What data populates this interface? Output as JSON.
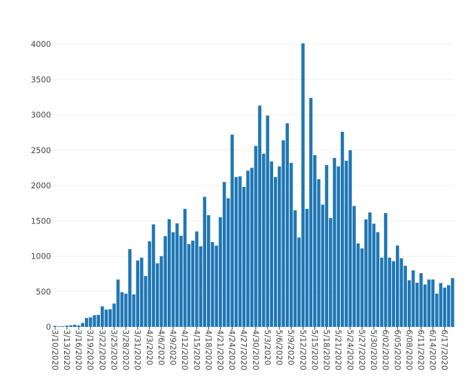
{
  "chart_data": {
    "type": "bar",
    "title": "",
    "xlabel": "",
    "ylabel": "",
    "ylim": [
      0,
      4100
    ],
    "yticks": [
      0,
      500,
      1000,
      1500,
      2000,
      2500,
      3000,
      3500,
      4000
    ],
    "grid": true,
    "legend": "none",
    "bar_color": "#1f77b4",
    "grid_color": "#eeeeee",
    "start_date": "2020-03-10",
    "x_tick_labels": [
      "3/10/2020",
      "3/13/2020",
      "3/16/2020",
      "3/19/2020",
      "3/22/2020",
      "3/25/2020",
      "3/28/2020",
      "3/31/2020",
      "4/3/2020",
      "4/6/2020",
      "4/9/2020",
      "4/12/2020",
      "4/15/2020",
      "4/18/2020",
      "4/21/2020",
      "4/24/2020",
      "4/27/2020",
      "4/30/2020",
      "5/3/2020",
      "5/6/2020",
      "5/9/2020",
      "5/12/2020",
      "5/15/2020",
      "5/18/2020",
      "5/21/2020",
      "5/24/2020",
      "5/27/2020",
      "5/30/2020",
      "6/02/2020",
      "6/05/2020",
      "6/08/2020",
      "6/11/2020",
      "6/14/2020",
      "6/17/2020"
    ],
    "values": [
      15,
      8,
      10,
      18,
      22,
      30,
      20,
      55,
      125,
      135,
      165,
      170,
      290,
      245,
      250,
      330,
      670,
      490,
      470,
      1100,
      460,
      940,
      980,
      720,
      1210,
      1450,
      900,
      1000,
      1285,
      1525,
      1340,
      1465,
      1290,
      1670,
      1170,
      1220,
      1350,
      1140,
      1840,
      1580,
      1200,
      1150,
      1550,
      2050,
      1820,
      2720,
      2120,
      2130,
      1980,
      2210,
      2250,
      2560,
      3130,
      2450,
      2990,
      2340,
      2120,
      2270,
      2640,
      2880,
      2320,
      1650,
      1265,
      4010,
      1670,
      3240,
      2430,
      2090,
      1730,
      2290,
      1540,
      2390,
      2270,
      2760,
      2350,
      2500,
      1710,
      1180,
      1110,
      1520,
      1620,
      1460,
      1340,
      980,
      1610,
      980,
      930,
      1150,
      970,
      865,
      660,
      800,
      625,
      760,
      600,
      670,
      670,
      470,
      620,
      555,
      590,
      690
    ]
  }
}
